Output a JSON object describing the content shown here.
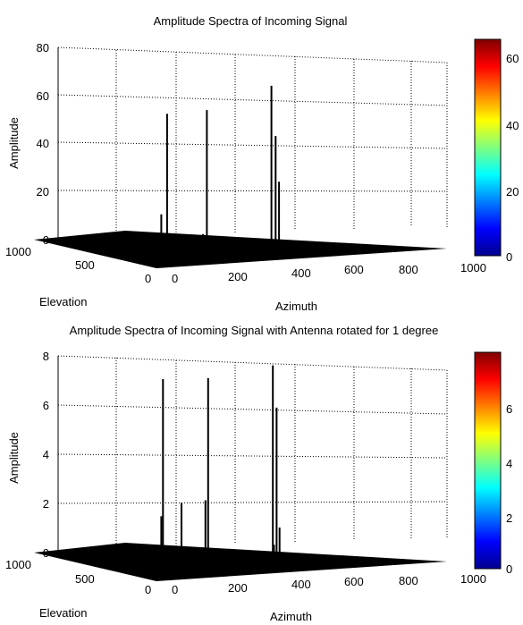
{
  "chart_data": [
    {
      "type": "surface",
      "title": "Amplitude Spectra of Incoming Signal",
      "xlabel": "Elevation",
      "ylabel": "Azimuth",
      "zlabel": "Amplitude",
      "elevation_ticks": [
        "1000",
        "500",
        "0"
      ],
      "azimuth_ticks": [
        "0",
        "200",
        "400",
        "600",
        "800",
        "1000"
      ],
      "zlim": [
        0,
        80
      ],
      "z_ticks": [
        "0",
        "20",
        "40",
        "60",
        "80"
      ],
      "grid": true,
      "colorbar": {
        "range": [
          0,
          65
        ],
        "ticks": [
          "0",
          "20",
          "40",
          "60"
        ]
      },
      "peaks": [
        {
          "azimuth": 25,
          "elevation": 20,
          "amplitude": 22
        },
        {
          "azimuth": 95,
          "elevation": 95,
          "amplitude": 11
        },
        {
          "azimuth": 215,
          "elevation": 130,
          "amplitude": 11
        },
        {
          "azimuth": 180,
          "elevation": 340,
          "amplitude": 59
        },
        {
          "azimuth": 300,
          "elevation": 300,
          "amplitude": 60
        },
        {
          "azimuth": 525,
          "elevation": 245,
          "amplitude": 29
        },
        {
          "azimuth": 545,
          "elevation": 320,
          "amplitude": 47
        },
        {
          "azimuth": 560,
          "elevation": 390,
          "amplitude": 67
        }
      ]
    },
    {
      "type": "surface",
      "title": "Amplitude Spectra of Incoming Signal with Antenna rotated for 1 degree",
      "xlabel": "Elevation",
      "ylabel": "Azimuth",
      "zlabel": "Amplitude",
      "elevation_ticks": [
        "1000",
        "500",
        "0"
      ],
      "azimuth_ticks": [
        "0",
        "200",
        "400",
        "600",
        "800",
        "1000"
      ],
      "zlim": [
        0,
        8
      ],
      "z_ticks": [
        "0",
        "2",
        "4",
        "6",
        "8"
      ],
      "grid": true,
      "colorbar": {
        "range": [
          0,
          8
        ],
        "ticks": [
          "0",
          "2",
          "4",
          "6"
        ]
      },
      "peaks": [
        {
          "azimuth": 25,
          "elevation": 20,
          "amplitude": 2.6
        },
        {
          "azimuth": 120,
          "elevation": 80,
          "amplitude": 3.0
        },
        {
          "azimuth": 215,
          "elevation": 110,
          "amplitude": 3.0
        },
        {
          "azimuth": 170,
          "elevation": 350,
          "amplitude": 7.7
        },
        {
          "azimuth": 300,
          "elevation": 290,
          "amplitude": 7.7
        },
        {
          "azimuth": 510,
          "elevation": 250,
          "amplitude": 0.8
        },
        {
          "azimuth": 525,
          "elevation": 240,
          "amplitude": 1.5
        },
        {
          "azimuth": 540,
          "elevation": 300,
          "amplitude": 6.3
        },
        {
          "azimuth": 565,
          "elevation": 390,
          "amplitude": 7.9
        }
      ]
    }
  ]
}
